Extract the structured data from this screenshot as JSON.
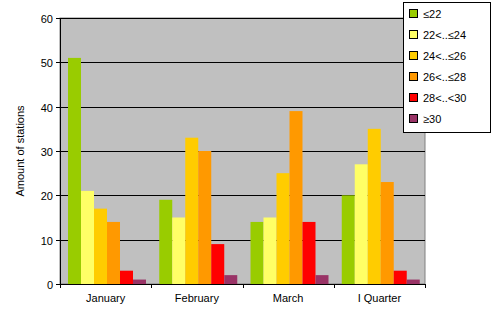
{
  "chart_data": {
    "type": "bar",
    "y_label": "Amount of stations",
    "categories": [
      "January",
      "February",
      "March",
      "I Quarter"
    ],
    "series": [
      {
        "name": "≤22",
        "color": "#99cc00",
        "values": [
          51,
          19,
          14,
          20
        ]
      },
      {
        "name": "22<..≤24",
        "color": "#ffff66",
        "values": [
          21,
          15,
          15,
          27
        ]
      },
      {
        "name": "24<..≤26",
        "color": "#ffcc00",
        "values": [
          17,
          33,
          25,
          35
        ]
      },
      {
        "name": "26<..≤28",
        "color": "#ff9900",
        "values": [
          14,
          30,
          39,
          23
        ]
      },
      {
        "name": "28<..<30",
        "color": "#ff0000",
        "values": [
          3,
          9,
          14,
          3
        ]
      },
      {
        "name": "≥30",
        "color": "#993366",
        "values": [
          1,
          2,
          2,
          1
        ]
      }
    ],
    "ylim": [
      0,
      60
    ],
    "yticks": [
      0,
      10,
      20,
      30,
      40,
      50,
      60
    ],
    "grid": true,
    "legend": "upper right"
  }
}
